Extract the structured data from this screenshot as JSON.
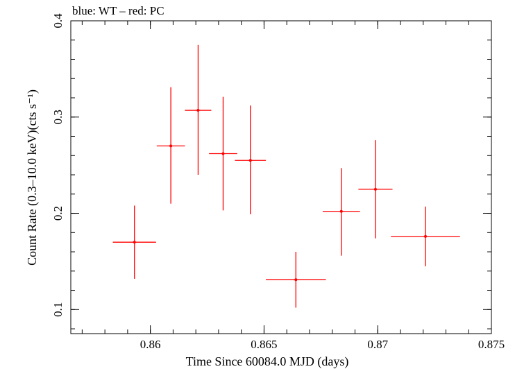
{
  "chart_data": {
    "type": "scatter",
    "title": "blue: WT – red: PC",
    "xlabel": "Time Since 60084.0 MJD (days)",
    "ylabel": "Count Rate (0.3–10.0 keV)(cts s⁻¹)",
    "xlim": [
      0.8565,
      0.875
    ],
    "ylim": [
      0.075,
      0.4
    ],
    "xticks": [
      0.86,
      0.865,
      0.87,
      0.875
    ],
    "xtick_labels": [
      "0.86",
      "0.865",
      "0.87",
      "0.875"
    ],
    "yticks": [
      0.1,
      0.2,
      0.3,
      0.4
    ],
    "ytick_labels": [
      "0.1",
      "0.2",
      "0.3",
      "0.4"
    ],
    "grid": false,
    "series": [
      {
        "color": "#ff0000",
        "points": [
          {
            "x": 0.8593,
            "y": 0.17,
            "xerr": 0.00095,
            "yerr_lo": 0.038,
            "yerr_hi": 0.038
          },
          {
            "x": 0.8609,
            "y": 0.27,
            "xerr": 0.00062,
            "yerr_lo": 0.06,
            "yerr_hi": 0.061
          },
          {
            "x": 0.8621,
            "y": 0.307,
            "xerr": 0.00058,
            "yerr_lo": 0.067,
            "yerr_hi": 0.068
          },
          {
            "x": 0.8632,
            "y": 0.262,
            "xerr": 0.00062,
            "yerr_lo": 0.059,
            "yerr_hi": 0.059
          },
          {
            "x": 0.8644,
            "y": 0.255,
            "xerr": 0.00068,
            "yerr_lo": 0.056,
            "yerr_hi": 0.057
          },
          {
            "x": 0.8664,
            "y": 0.131,
            "xerr": 0.00132,
            "yerr_lo": 0.029,
            "yerr_hi": 0.029
          },
          {
            "x": 0.8684,
            "y": 0.202,
            "xerr": 0.00082,
            "yerr_lo": 0.046,
            "yerr_hi": 0.045
          },
          {
            "x": 0.8699,
            "y": 0.225,
            "xerr": 0.00075,
            "yerr_lo": 0.051,
            "yerr_hi": 0.051
          },
          {
            "x": 0.8721,
            "y": 0.176,
            "xerr": 0.00152,
            "yerr_lo": 0.031,
            "yerr_hi": 0.031
          }
        ]
      }
    ]
  }
}
